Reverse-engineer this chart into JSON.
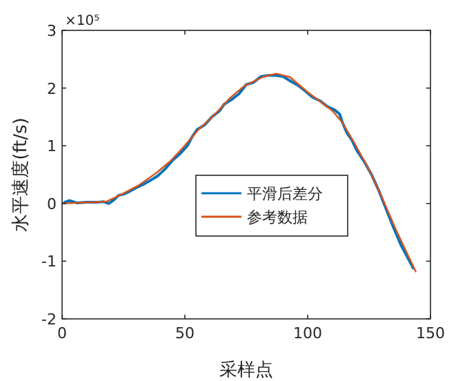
{
  "chart_data": {
    "type": "line",
    "xlabel": "采样点",
    "ylabel": "水平速度(ft/s)",
    "annotations": [
      "×10⁵"
    ],
    "xlim": [
      0,
      150
    ],
    "xticks": [
      0,
      50,
      100,
      150
    ],
    "ylim": [
      -2,
      3
    ],
    "yticks": [
      -2,
      -1,
      0,
      1,
      2,
      3
    ],
    "grid": false,
    "legend": "center",
    "marker": "none",
    "line_style": "solid",
    "series": [
      {
        "name": "平滑后差分",
        "color": "#0072bd",
        "x": [
          1,
          3,
          6,
          10,
          14,
          17,
          19,
          21,
          23,
          25,
          28,
          30,
          33,
          36,
          39,
          42,
          45,
          48,
          51,
          53,
          55,
          58,
          61,
          64,
          66,
          69,
          72,
          75,
          78,
          81,
          84,
          87,
          90,
          93,
          96,
          99,
          102,
          105,
          108,
          111,
          113,
          114,
          116,
          118,
          120,
          123,
          126,
          129,
          132,
          135,
          138,
          141,
          143
        ],
        "values": [
          0.02,
          0.05,
          0.01,
          0.02,
          0.02,
          0.03,
          0.0,
          0.06,
          0.14,
          0.16,
          0.22,
          0.27,
          0.33,
          0.4,
          0.48,
          0.6,
          0.75,
          0.86,
          1.0,
          1.16,
          1.28,
          1.36,
          1.5,
          1.6,
          1.72,
          1.8,
          1.9,
          2.06,
          2.1,
          2.2,
          2.22,
          2.22,
          2.2,
          2.12,
          2.05,
          1.95,
          1.84,
          1.78,
          1.68,
          1.62,
          1.55,
          1.42,
          1.22,
          1.1,
          0.92,
          0.73,
          0.5,
          0.22,
          -0.1,
          -0.42,
          -0.72,
          -0.96,
          -1.12
        ]
      },
      {
        "name": "参考数据",
        "color": "#d95319",
        "x": [
          0,
          17.8,
          23.4,
          31,
          38.4,
          44,
          49.7,
          55.3,
          62.8,
          68.4,
          74,
          81.6,
          87.2,
          92.8,
          100,
          110,
          114,
          119,
          124.7,
          130.3,
          136,
          144
        ],
        "values": [
          0,
          0.03,
          0.14,
          0.31,
          0.53,
          0.73,
          0.99,
          1.27,
          1.57,
          1.83,
          2.03,
          2.19,
          2.25,
          2.19,
          1.93,
          1.61,
          1.41,
          1.05,
          0.61,
          0.1,
          -0.46,
          -1.18
        ]
      }
    ]
  }
}
